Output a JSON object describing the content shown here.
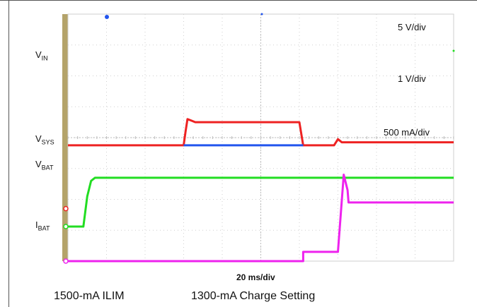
{
  "chart_data": {
    "type": "line",
    "title": "",
    "timebase": "20 ms/div",
    "x_unit": "ms",
    "x_divisions": 10,
    "y_divisions": 8,
    "channel_labels": [
      {
        "name": "V",
        "sub": "IN"
      },
      {
        "name": "V",
        "sub": "SYS"
      },
      {
        "name": "V",
        "sub": "BAT"
      },
      {
        "name": "I",
        "sub": "BAT"
      }
    ],
    "scales": [
      "5 V/div",
      "1 V/div",
      "500 mA/div"
    ],
    "series": [
      {
        "name": "VIN",
        "color": "#22dd22",
        "scale": "5 V/div",
        "points": [
          [
            0,
            1.12
          ],
          [
            8,
            1.12
          ],
          [
            10,
            2.1
          ],
          [
            12,
            2.6
          ],
          [
            14,
            2.7
          ],
          [
            200,
            2.7
          ]
        ]
      },
      {
        "name": "VSYS",
        "color": "#ee2222",
        "scale": "1 V/div",
        "points": [
          [
            0,
            3.75
          ],
          [
            60,
            3.75
          ],
          [
            61,
            4.2
          ],
          [
            62,
            4.6
          ],
          [
            64,
            4.55
          ],
          [
            66,
            4.5
          ],
          [
            120,
            4.5
          ],
          [
            122,
            3.75
          ],
          [
            138,
            3.75
          ],
          [
            140,
            3.95
          ],
          [
            142,
            3.85
          ],
          [
            200,
            3.85
          ]
        ]
      },
      {
        "name": "VBAT",
        "color": "#2255ee",
        "scale": "1 V/div",
        "points": [
          [
            60,
            3.75
          ],
          [
            122,
            3.75
          ]
        ]
      },
      {
        "name": "IBAT",
        "color": "#ee22ee",
        "scale": "500 mA/div",
        "points": [
          [
            0,
            0
          ],
          [
            122,
            0
          ],
          [
            122,
            0.3
          ],
          [
            140,
            0.3
          ],
          [
            143,
            2.8
          ],
          [
            145,
            2.3
          ],
          [
            145.5,
            1.9
          ],
          [
            200,
            1.9
          ]
        ]
      }
    ]
  },
  "footer": {
    "ilim": "1500-mA ILIM",
    "charge": "1300-mA Charge Setting"
  }
}
